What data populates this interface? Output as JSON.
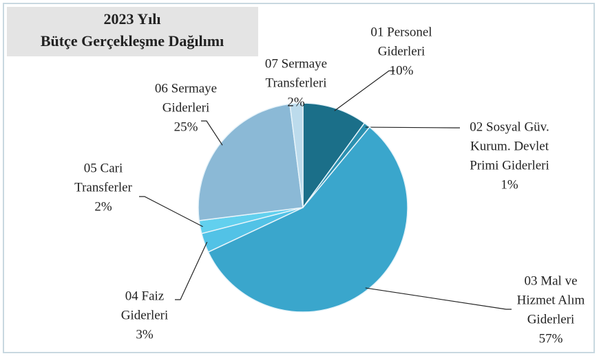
{
  "chart_data": {
    "type": "pie",
    "title": [
      "2023 Yılı",
      "Bütçe Gerçekleşme Dağılımı"
    ],
    "categories": [
      [
        "01 Personel",
        "Giderleri"
      ],
      [
        "02 Sosyal Güv.",
        "Kurum. Devlet",
        "Primi Giderleri"
      ],
      [
        "03 Mal ve",
        "Hizmet Alım",
        "Giderleri"
      ],
      [
        "04 Faiz",
        "Giderleri"
      ],
      [
        "05 Cari",
        "Transferler"
      ],
      [
        "06 Sermaye",
        "Giderleri"
      ],
      [
        "07 Sermaye",
        "Transferleri"
      ]
    ],
    "values": [
      10,
      1,
      57,
      3,
      2,
      25,
      2
    ],
    "value_labels": [
      "10%",
      "1%",
      "57%",
      "3%",
      "2%",
      "25%",
      "2%"
    ],
    "colors": [
      "#1b6f89",
      "#2b90b0",
      "#3aa6cc",
      "#52c2e6",
      "#62d0ee",
      "#8bb9d6",
      "#bcdbec"
    ]
  }
}
